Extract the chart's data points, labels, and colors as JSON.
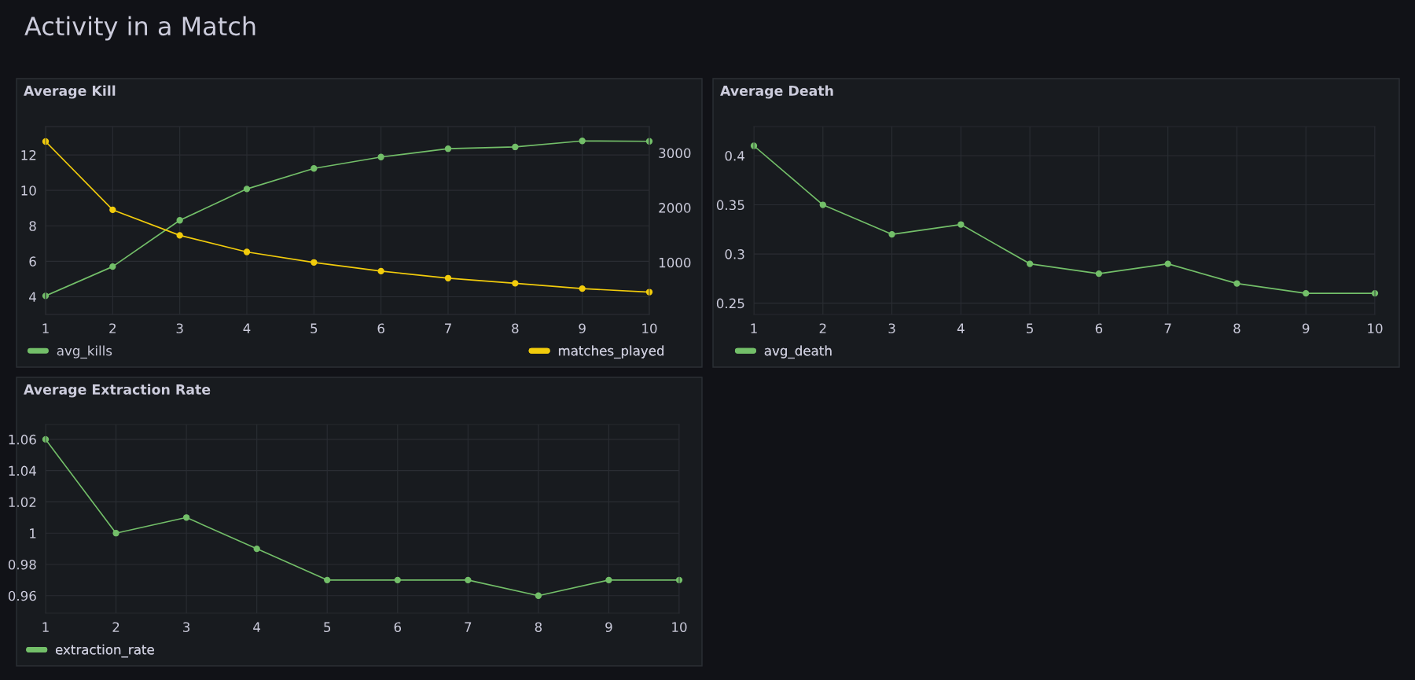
{
  "chart_data": [
    {
      "type": "line",
      "title": "Average Kill",
      "annotations": [
        "Activity in a Match"
      ],
      "x": [
        1,
        2,
        3,
        4,
        5,
        6,
        7,
        8,
        9,
        10
      ],
      "xlim": [
        1,
        10
      ],
      "xticks": [
        1,
        2,
        3,
        4,
        5,
        6,
        7,
        8,
        9,
        10
      ],
      "ylim": [
        3,
        13.6
      ],
      "yticks": [
        4,
        6,
        8,
        10,
        12
      ],
      "y2lim": [
        50,
        3480
      ],
      "y2ticks": [
        1000,
        2000,
        3000
      ],
      "grid": true,
      "legend": "bottom",
      "marker": "circle",
      "line_style": "solid",
      "series": [
        {
          "name": "avg_kills",
          "color": "#73bf69",
          "values": [
            4.05,
            5.7,
            8.31,
            10.08,
            11.24,
            11.88,
            12.35,
            12.45,
            12.79,
            12.77
          ]
        },
        {
          "name": "matches_played",
          "color": "#f2cc0c",
          "axis": "y2",
          "values": [
            3207,
            1960,
            1494,
            1191,
            1000,
            841,
            713,
            618,
            522,
            458
          ]
        }
      ]
    },
    {
      "type": "line",
      "title": "Average Death",
      "x": [
        1,
        2,
        3,
        4,
        5,
        6,
        7,
        8,
        9,
        10
      ],
      "xlim": [
        1,
        10
      ],
      "xticks": [
        1,
        2,
        3,
        4,
        5,
        6,
        7,
        8,
        9,
        10
      ],
      "ylim": [
        0.2385,
        0.4296
      ],
      "yticks": [
        0.25,
        0.3,
        0.35,
        0.4
      ],
      "grid": true,
      "legend": "bottom",
      "marker": "circle",
      "line_style": "solid",
      "series": [
        {
          "name": "avg_death",
          "color": "#73bf69",
          "values": [
            0.41,
            0.35,
            0.32,
            0.33,
            0.29,
            0.28,
            0.29,
            0.27,
            0.26,
            0.26
          ]
        }
      ]
    },
    {
      "type": "line",
      "title": "Average Extraction Rate",
      "x": [
        1,
        2,
        3,
        4,
        5,
        6,
        7,
        8,
        9,
        10
      ],
      "xlim": [
        1,
        10
      ],
      "xticks": [
        1,
        2,
        3,
        4,
        5,
        6,
        7,
        8,
        9,
        10
      ],
      "ylim": [
        0.9488,
        1.0695
      ],
      "yticks": [
        0.96,
        0.98,
        1,
        1.02,
        1.04,
        1.06
      ],
      "grid": true,
      "legend": "bottom",
      "marker": "circle",
      "line_style": "solid",
      "series": [
        {
          "name": "extraction_rate",
          "color": "#73bf69",
          "values": [
            1.06,
            1.0,
            1.01,
            0.99,
            0.97,
            0.97,
            0.97,
            0.96,
            0.97,
            0.97
          ]
        }
      ]
    }
  ]
}
